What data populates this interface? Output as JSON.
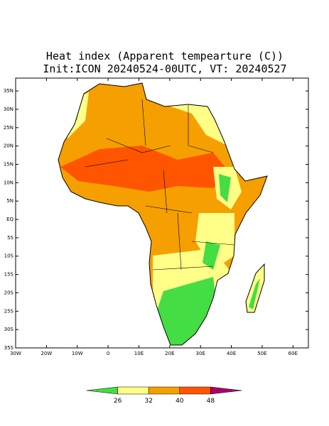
{
  "chart_data": {
    "type": "map",
    "title": "Heat index (Apparent tempearture (C))",
    "subtitle": "Init:ICON 20240524-00UTC, VT: 20240527",
    "xlim": [
      -30,
      65
    ],
    "ylim": [
      -35,
      38.5
    ],
    "xticks": [
      {
        "value": -30,
        "label": "30W"
      },
      {
        "value": -20,
        "label": "20W"
      },
      {
        "value": -10,
        "label": "10W"
      },
      0,
      {
        "value": 10,
        "label": "10E"
      },
      {
        "value": 20,
        "label": "20E"
      },
      {
        "value": 30,
        "label": "30E"
      },
      {
        "value": 40,
        "label": "40E"
      },
      {
        "value": 50,
        "label": "50E"
      },
      {
        "value": 60,
        "label": "60E"
      }
    ],
    "yticks": [
      {
        "value": 35,
        "label": "35N"
      },
      {
        "value": 30,
        "label": "30N"
      },
      {
        "value": 25,
        "label": "25N"
      },
      {
        "value": 20,
        "label": "20N"
      },
      {
        "value": 15,
        "label": "15N"
      },
      {
        "value": 10,
        "label": "10N"
      },
      {
        "value": 5,
        "label": "5N"
      },
      {
        "value": 0,
        "label": "EQ"
      },
      {
        "value": -5,
        "label": "5S"
      },
      {
        "value": -10,
        "label": "10S"
      },
      {
        "value": -15,
        "label": "15S"
      },
      {
        "value": -20,
        "label": "20S"
      },
      {
        "value": -25,
        "label": "25S"
      },
      {
        "value": -30,
        "label": "30S"
      },
      {
        "value": -35,
        "label": "35S"
      }
    ],
    "colorbar": {
      "ticks": [
        26,
        32,
        40,
        48
      ],
      "colors": [
        "#44dd44",
        "#ffff88",
        "#f5a000",
        "#ff5500",
        "#aa0066"
      ]
    }
  }
}
